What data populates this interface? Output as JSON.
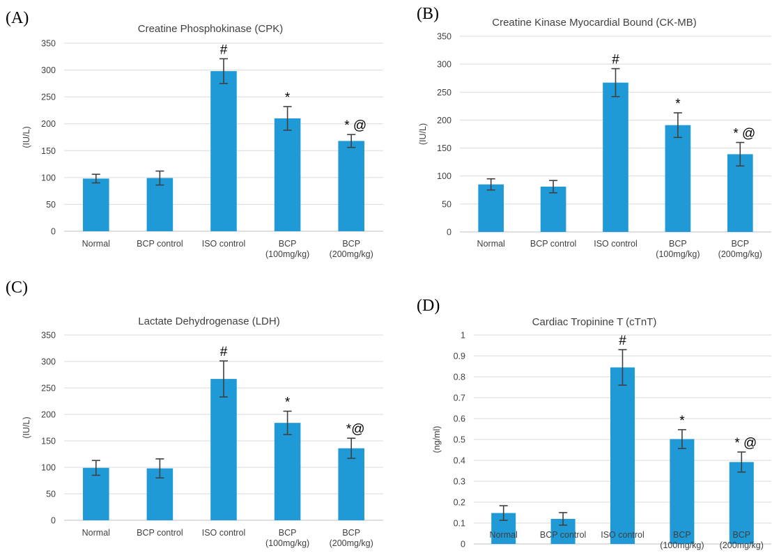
{
  "chart_data": [
    {
      "panel_label": "(A)",
      "type": "bar",
      "title": "Creatine Phosphokinase (CPK)",
      "ylabel": "(IU/L)",
      "xlabel": "",
      "ylim": [
        0,
        350
      ],
      "yticks": [
        "0",
        "50",
        "100",
        "150",
        "200",
        "250",
        "300",
        "350"
      ],
      "categories": [
        [
          "Normal"
        ],
        [
          "BCP control"
        ],
        [
          "ISO    control"
        ],
        [
          "BCP",
          "(100mg/kg)"
        ],
        [
          "BCP",
          "(200mg/kg)"
        ]
      ],
      "values": [
        98,
        99,
        298,
        210,
        168
      ],
      "errors": [
        8,
        13,
        23,
        22,
        12
      ],
      "annotations": [
        "",
        "",
        "#",
        "*",
        "* @"
      ],
      "bar_color": "#1f9ad6",
      "grid": true
    },
    {
      "panel_label": "(B)",
      "type": "bar",
      "title": "Creatine Kinase Myocardial Bound (CK-MB)",
      "ylabel": "(IU/L)",
      "xlabel": "",
      "ylim": [
        0,
        350
      ],
      "yticks": [
        "0",
        "50",
        "100",
        "150",
        "200",
        "250",
        "300",
        "350"
      ],
      "categories": [
        [
          "Normal"
        ],
        [
          "BCP control"
        ],
        [
          "ISO    control"
        ],
        [
          "BCP",
          "(100mg/kg)"
        ],
        [
          "BCP",
          "(200mg/kg)"
        ]
      ],
      "values": [
        85,
        81,
        267,
        191,
        139
      ],
      "errors": [
        10,
        11,
        25,
        22,
        21
      ],
      "annotations": [
        "",
        "",
        "#",
        "*",
        "* @"
      ],
      "bar_color": "#1f9ad6",
      "grid": true
    },
    {
      "panel_label": "(C)",
      "type": "bar",
      "title": "Lactate Dehydrogenase (LDH)",
      "ylabel": "(IU/L)",
      "xlabel": "",
      "ylim": [
        0,
        350
      ],
      "yticks": [
        "0",
        "50",
        "100",
        "150",
        "200",
        "250",
        "300",
        "350"
      ],
      "categories": [
        [
          "Normal"
        ],
        [
          "BCP control"
        ],
        [
          "ISO    control"
        ],
        [
          "BCP",
          "(100mg/kg)"
        ],
        [
          "BCP",
          "(200mg/kg)"
        ]
      ],
      "values": [
        99,
        98,
        267,
        184,
        136
      ],
      "errors": [
        14,
        18,
        34,
        22,
        19
      ],
      "annotations": [
        "",
        "",
        "#",
        "*",
        "*@"
      ],
      "bar_color": "#1f9ad6",
      "grid": true
    },
    {
      "panel_label": "(D)",
      "type": "bar",
      "title": "Cardiac Tropinine T (cTnT)",
      "ylabel": "(ng/ml)",
      "xlabel": "",
      "ylim": [
        0,
        1
      ],
      "yticks": [
        "0",
        "0.1",
        "0.2",
        "0.3",
        "0.4",
        "0.5",
        "0.6",
        "0.7",
        "0.8",
        "0.9",
        "1"
      ],
      "categories": [
        [
          "Normal"
        ],
        [
          "BCP control"
        ],
        [
          "ISO    control"
        ],
        [
          "BCP",
          "(100mg/kg)"
        ],
        [
          "BCP",
          "(200mg/kg)"
        ]
      ],
      "values": [
        0.148,
        0.12,
        0.845,
        0.502,
        0.392
      ],
      "errors": [
        0.035,
        0.03,
        0.085,
        0.045,
        0.048
      ],
      "annotations": [
        "",
        "",
        "#",
        "*",
        "* @"
      ],
      "bar_color": "#1f9ad6",
      "grid": true
    }
  ]
}
